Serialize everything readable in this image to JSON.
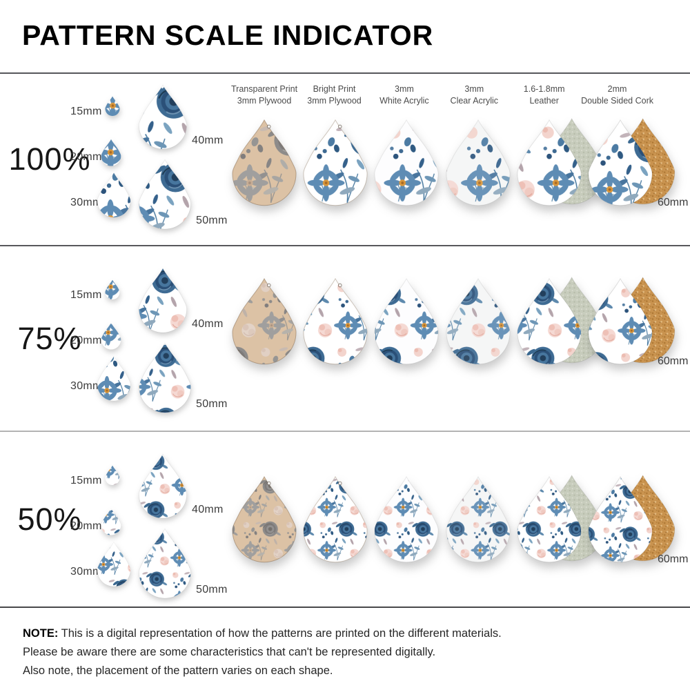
{
  "title": "PATTERN SCALE INDICATOR",
  "rows": [
    {
      "scale": "100%"
    },
    {
      "scale": "75%"
    },
    {
      "scale": "50%"
    }
  ],
  "size_labels": {
    "s15": "15mm",
    "s20": "20mm",
    "s30": "30mm",
    "s40": "40mm",
    "s50": "50mm",
    "s60": "60mm"
  },
  "materials": [
    {
      "line1": "Transparent Print",
      "line2": "3mm Plywood"
    },
    {
      "line1": "Bright Print",
      "line2": "3mm Plywood"
    },
    {
      "line1": "3mm",
      "line2": "White Acrylic"
    },
    {
      "line1": "3mm",
      "line2": "Clear Acrylic"
    },
    {
      "line1": "1.6-1.8mm",
      "line2": "Leather"
    },
    {
      "line1": "2mm",
      "line2": "Double Sided Cork"
    }
  ],
  "note": {
    "label": "NOTE:",
    "line1": "This is a digital representation of how the patterns are printed on the different materials.",
    "line2": "Please be aware there are some characteristics that can't be represented digitally.",
    "line3": "Also note, the placement of the pattern varies on each shape."
  },
  "colors": {
    "pattern_blue_dark": "#2b5078",
    "pattern_blue": "#3e6b93",
    "pattern_blue_light": "#7ba3c0",
    "pattern_pink": "#f5d9d3",
    "pattern_ochre": "#d9973c",
    "plywood_tan": "#dcc2a5",
    "leather_sage": "#c7ccbc",
    "cork_orange": "#c9934f",
    "divider_gray": "#57575b",
    "label_gray": "#3c3c3c"
  }
}
